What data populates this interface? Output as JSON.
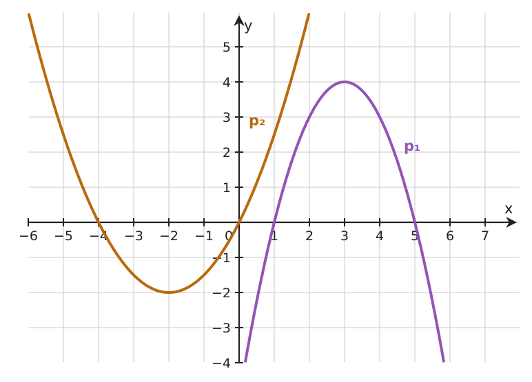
{
  "chart_data": {
    "type": "line",
    "xlabel": "x",
    "ylabel": "y",
    "xlim": [
      -6,
      8
    ],
    "ylim": [
      -4,
      6
    ],
    "grid": true,
    "x_ticks": [
      -6,
      -5,
      -4,
      -3,
      -2,
      -1,
      0,
      1,
      2,
      3,
      4,
      5,
      6,
      7
    ],
    "x_tick_labels": [
      "−6",
      "−5",
      "−4",
      "−3",
      "−2",
      "−1",
      "0",
      "1",
      "2",
      "3",
      "4",
      "5",
      "6",
      "7"
    ],
    "y_ticks": [
      -4,
      -3,
      -2,
      -1,
      1,
      2,
      3,
      4,
      5
    ],
    "y_tick_labels": [
      "−4",
      "−3",
      "−2",
      "−1",
      "1",
      "2",
      "3",
      "4",
      "5"
    ],
    "series": [
      {
        "name": "p₁",
        "color": "#9354b5",
        "x": [
          1,
          2,
          3,
          4,
          5
        ],
        "y": [
          0,
          3,
          4,
          3,
          0
        ],
        "vertex": [
          3,
          4
        ],
        "roots": [
          1,
          5
        ]
      },
      {
        "name": "p₂",
        "color": "#b86a0c",
        "x": [
          -4,
          -3,
          -2,
          -1,
          0
        ],
        "y": [
          0,
          -1.5,
          -2,
          -1.5,
          0
        ],
        "vertex": [
          -2,
          -2
        ],
        "roots": [
          -4,
          0
        ]
      }
    ]
  }
}
